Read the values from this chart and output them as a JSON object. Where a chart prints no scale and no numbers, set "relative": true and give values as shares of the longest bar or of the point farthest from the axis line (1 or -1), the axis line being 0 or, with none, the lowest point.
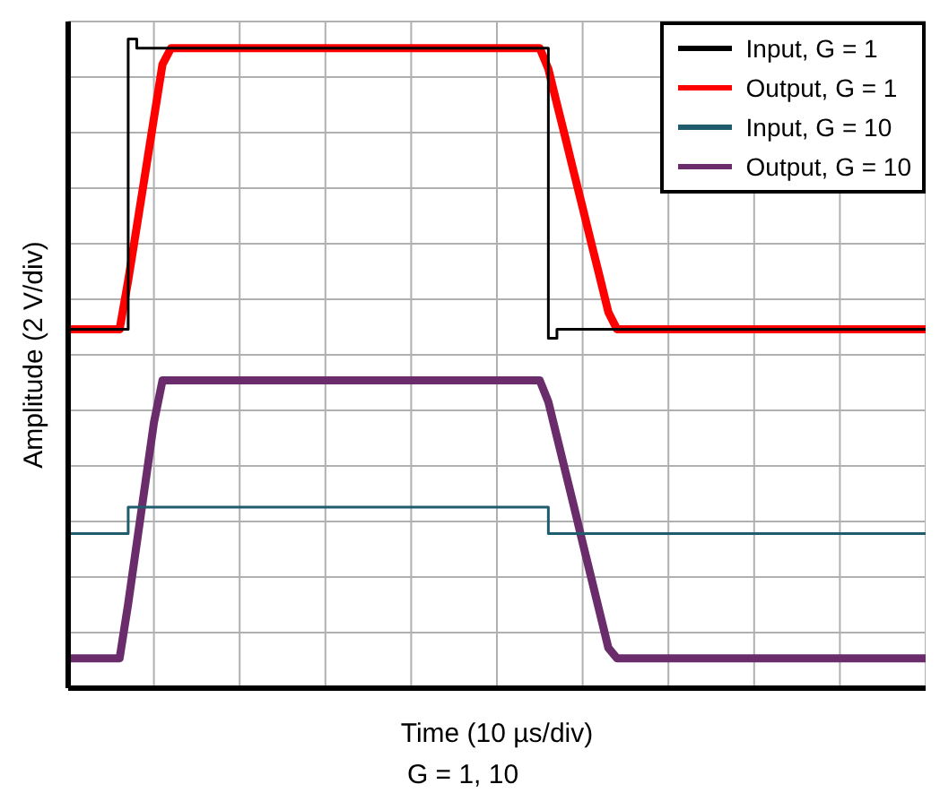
{
  "chart_data": {
    "type": "line",
    "relative": true,
    "xlabel": "Time (10 µs/div)",
    "ylabel": "Amplitude (2 V/div)",
    "annotations": [
      "G = 1, 10"
    ],
    "grid": true,
    "legend": "top right",
    "line_style": "solid",
    "categories": [
      null,
      null,
      null,
      null,
      null,
      null,
      null,
      null,
      null,
      null,
      null,
      null,
      null,
      null,
      null,
      null,
      null,
      null,
      null,
      null,
      null,
      null,
      null,
      null,
      null,
      null,
      null,
      null,
      null,
      null,
      null,
      null,
      null,
      null,
      null,
      null,
      null,
      null,
      null,
      null,
      null,
      null,
      null,
      null,
      null,
      null,
      null,
      null,
      null,
      null,
      null,
      null,
      null,
      null,
      null,
      null,
      null,
      null,
      null,
      null,
      null,
      null,
      null,
      null,
      null,
      null,
      null,
      null,
      null,
      null,
      null,
      null,
      null,
      null,
      null,
      null,
      null,
      null,
      null,
      null,
      null,
      null,
      null,
      null,
      null,
      null,
      null,
      null,
      null,
      null,
      null,
      null,
      null,
      null,
      null,
      null,
      null,
      null,
      null,
      null,
      null
    ],
    "series": [
      {
        "name": "Input, G = 1",
        "type": "step",
        "color": "#000000",
        "values": [
          0.553,
          0.553,
          0.553,
          0.553,
          0.553,
          0.553,
          0.553,
          1,
          0.986,
          0.986,
          0.986,
          0.986,
          0.986,
          0.986,
          0.986,
          0.986,
          0.986,
          0.986,
          0.986,
          0.986,
          0.986,
          0.986,
          0.986,
          0.986,
          0.986,
          0.986,
          0.986,
          0.986,
          0.986,
          0.986,
          0.986,
          0.986,
          0.986,
          0.986,
          0.986,
          0.986,
          0.986,
          0.986,
          0.986,
          0.986,
          0.986,
          0.986,
          0.986,
          0.986,
          0.986,
          0.986,
          0.986,
          0.986,
          0.986,
          0.986,
          0.986,
          0.986,
          0.986,
          0.986,
          0.986,
          0.986,
          0.539,
          0.553,
          0.553,
          0.553,
          0.553,
          0.553,
          0.553,
          0.553,
          0.553,
          0.553,
          0.553,
          0.553,
          0.553,
          0.553,
          0.553,
          0.553,
          0.553,
          0.553,
          0.553,
          0.553,
          0.553,
          0.553,
          0.553,
          0.553,
          0.553,
          0.553,
          0.553,
          0.553,
          0.553,
          0.553,
          0.553,
          0.553,
          0.553,
          0.553,
          0.553,
          0.553,
          0.553,
          0.553,
          0.553,
          0.553,
          0.553,
          0.553,
          0.553,
          0.553,
          0.553
        ]
      },
      {
        "name": "Output, G = 1",
        "color": "#ff0000",
        "values": [
          0.553,
          0.553,
          0.553,
          0.553,
          0.553,
          0.553,
          0.553,
          0.628,
          0.711,
          0.794,
          0.878,
          0.961,
          0.986,
          0.986,
          0.986,
          0.986,
          0.986,
          0.986,
          0.986,
          0.986,
          0.986,
          0.986,
          0.986,
          0.986,
          0.986,
          0.986,
          0.986,
          0.986,
          0.986,
          0.986,
          0.986,
          0.986,
          0.986,
          0.986,
          0.986,
          0.986,
          0.986,
          0.986,
          0.986,
          0.986,
          0.986,
          0.986,
          0.986,
          0.986,
          0.986,
          0.986,
          0.986,
          0.986,
          0.986,
          0.986,
          0.986,
          0.986,
          0.986,
          0.986,
          0.986,
          0.986,
          0.954,
          0.9,
          0.847,
          0.793,
          0.74,
          0.686,
          0.633,
          0.579,
          0.553,
          0.553,
          0.553,
          0.553,
          0.553,
          0.553,
          0.553,
          0.553,
          0.553,
          0.553,
          0.553,
          0.553,
          0.553,
          0.553,
          0.553,
          0.553,
          0.553,
          0.553,
          0.553,
          0.553,
          0.553,
          0.553,
          0.553,
          0.553,
          0.553,
          0.553,
          0.553,
          0.553,
          0.553,
          0.553,
          0.553,
          0.553,
          0.553,
          0.553,
          0.553,
          0.553,
          0.553
        ]
      },
      {
        "name": "Input, G = 10",
        "type": "step",
        "color": "#1f5c6e",
        "values": [
          0.238,
          0.238,
          0.238,
          0.238,
          0.238,
          0.238,
          0.238,
          0.279,
          0.279,
          0.279,
          0.279,
          0.279,
          0.279,
          0.279,
          0.279,
          0.279,
          0.279,
          0.279,
          0.279,
          0.279,
          0.279,
          0.279,
          0.279,
          0.279,
          0.279,
          0.279,
          0.279,
          0.279,
          0.279,
          0.279,
          0.279,
          0.279,
          0.279,
          0.279,
          0.279,
          0.279,
          0.279,
          0.279,
          0.279,
          0.279,
          0.279,
          0.279,
          0.279,
          0.279,
          0.279,
          0.279,
          0.279,
          0.279,
          0.279,
          0.279,
          0.279,
          0.279,
          0.279,
          0.279,
          0.279,
          0.279,
          0.238,
          0.238,
          0.238,
          0.238,
          0.238,
          0.238,
          0.238,
          0.238,
          0.238,
          0.238,
          0.238,
          0.238,
          0.238,
          0.238,
          0.238,
          0.238,
          0.238,
          0.238,
          0.238,
          0.238,
          0.238,
          0.238,
          0.238,
          0.238,
          0.238,
          0.238,
          0.238,
          0.238,
          0.238,
          0.238,
          0.238,
          0.238,
          0.238,
          0.238,
          0.238,
          0.238,
          0.238,
          0.238,
          0.238,
          0.238,
          0.238,
          0.238,
          0.238,
          0.238,
          0.238
        ]
      },
      {
        "name": "Output, G = 10",
        "color": "#6a2c6a",
        "values": [
          0.046,
          0.046,
          0.046,
          0.046,
          0.046,
          0.046,
          0.046,
          0.13,
          0.223,
          0.316,
          0.409,
          0.474,
          0.474,
          0.474,
          0.474,
          0.474,
          0.474,
          0.474,
          0.474,
          0.474,
          0.474,
          0.474,
          0.474,
          0.474,
          0.474,
          0.474,
          0.474,
          0.474,
          0.474,
          0.474,
          0.474,
          0.474,
          0.474,
          0.474,
          0.474,
          0.474,
          0.474,
          0.474,
          0.474,
          0.474,
          0.474,
          0.474,
          0.474,
          0.474,
          0.474,
          0.474,
          0.474,
          0.474,
          0.474,
          0.474,
          0.474,
          0.474,
          0.474,
          0.474,
          0.474,
          0.474,
          0.441,
          0.387,
          0.333,
          0.279,
          0.224,
          0.17,
          0.116,
          0.062,
          0.046,
          0.046,
          0.046,
          0.046,
          0.046,
          0.046,
          0.046,
          0.046,
          0.046,
          0.046,
          0.046,
          0.046,
          0.046,
          0.046,
          0.046,
          0.046,
          0.046,
          0.046,
          0.046,
          0.046,
          0.046,
          0.046,
          0.046,
          0.046,
          0.046,
          0.046,
          0.046,
          0.046,
          0.046,
          0.046,
          0.046,
          0.046,
          0.046,
          0.046,
          0.046,
          0.046,
          0.046
        ]
      }
    ]
  }
}
